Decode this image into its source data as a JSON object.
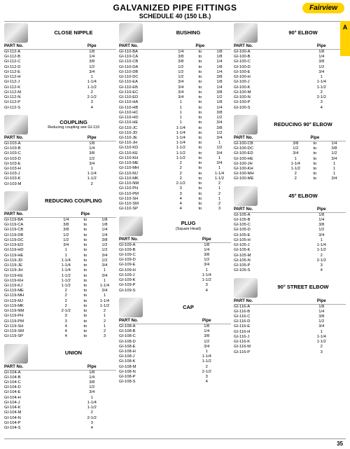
{
  "header": {
    "title1": "GALVANIZED PIPE FITTINGS",
    "title2": "SCHEDULE 40 (150 LB.)",
    "brand": "Fairview",
    "tab": "A",
    "pageNumber": "35"
  },
  "labels": {
    "part": "PART No.",
    "pipe": "Pipe",
    "to": "to"
  },
  "sections": {
    "closeNipple": {
      "title": "CLOSE NIPPLE",
      "rows": [
        [
          "GI-112-A",
          "1/8"
        ],
        [
          "GI-112-B",
          "1/4"
        ],
        [
          "GI-112-C",
          "3/8"
        ],
        [
          "GI-112-D",
          "1/2"
        ],
        [
          "GI-112-E",
          "3/4"
        ],
        [
          "GI-112-H",
          "1"
        ],
        [
          "GI-112-J",
          "1-1/4"
        ],
        [
          "GI-112-K",
          "1-1/2"
        ],
        [
          "GI-112-M",
          "2"
        ],
        [
          "GI-112-N",
          "2-1/2"
        ],
        [
          "GI-112-P",
          "3"
        ],
        [
          "GI-112-S",
          "4"
        ]
      ]
    },
    "coupling": {
      "title": "COUPLING",
      "note": "Reducing coupling see GI-119",
      "rows": [
        [
          "GI-103-A",
          "1/8"
        ],
        [
          "GI-103-B",
          "1/4"
        ],
        [
          "GI-103-C",
          "3/8"
        ],
        [
          "GI-103-D",
          "1/2"
        ],
        [
          "GI-103-E",
          "3/4"
        ],
        [
          "GI-103-H",
          "1"
        ],
        [
          "GI-103-J",
          "1-1/4"
        ],
        [
          "GI-103-K",
          "1-1/2"
        ],
        [
          "GI-103-M",
          "2"
        ]
      ]
    },
    "reducingCoupling": {
      "title": "REDUCING COUPLING",
      "rows": [
        [
          "GI-119-BA",
          "1/4",
          "1/8"
        ],
        [
          "GI-119-CA",
          "3/8",
          "1/8"
        ],
        [
          "GI-119-CB",
          "3/8",
          "1/4"
        ],
        [
          "GI-119-DB",
          "1/2",
          "1/4"
        ],
        [
          "GI-119-DC",
          "1/2",
          "3/8"
        ],
        [
          "GI-119-ED",
          "3/4",
          "1/2"
        ],
        [
          "GI-119-HD",
          "1",
          "1/2"
        ],
        [
          "GI-119-HE",
          "1",
          "3/4"
        ],
        [
          "GI-119-JD",
          "1-1/4",
          "1/2"
        ],
        [
          "GI-119-JE",
          "1-1/4",
          "3/4"
        ],
        [
          "GI-119-JH",
          "1-1/4",
          "1"
        ],
        [
          "GI-119-KE",
          "1-1/2",
          "3/4"
        ],
        [
          "GI-119-KH",
          "1-1/2",
          "1"
        ],
        [
          "GI-119-KJ",
          "1-1/2",
          "1-1/4"
        ],
        [
          "GI-119-ME",
          "2",
          "3/4"
        ],
        [
          "GI-119-MH",
          "2",
          "1"
        ],
        [
          "GI-119-MJ",
          "2",
          "1-1/4"
        ],
        [
          "GI-119-MK",
          "2",
          "1-1/2"
        ],
        [
          "GI-119-NM",
          "2-1/2",
          "2"
        ],
        [
          "GI-119-PH",
          "3",
          "1"
        ],
        [
          "GI-119-PM",
          "3",
          "2"
        ],
        [
          "GI-119-SH",
          "4",
          "1"
        ],
        [
          "GI-119-SM",
          "4",
          "2"
        ],
        [
          "GI-119-SP",
          "4",
          "3"
        ]
      ]
    },
    "union": {
      "title": "UNION",
      "rows": [
        [
          "GI-104-A",
          "1/8"
        ],
        [
          "GI-104-B",
          "1/4"
        ],
        [
          "GI-104-C",
          "3/8"
        ],
        [
          "GI-104-D",
          "1/2"
        ],
        [
          "GI-104-E",
          "3/4"
        ],
        [
          "GI-104-H",
          "1"
        ],
        [
          "GI-104-J",
          "1-1/4"
        ],
        [
          "GI-104-K",
          "1-1/2"
        ],
        [
          "GI-104-M",
          "2"
        ],
        [
          "GI-104-N",
          "2-1/2"
        ],
        [
          "GI-104-P",
          "3"
        ],
        [
          "GI-104-S",
          "4"
        ]
      ]
    },
    "bushing": {
      "title": "BUSHING",
      "rows": [
        [
          "GI-110-BA",
          "1/4",
          "1/8"
        ],
        [
          "GI-110-CA",
          "3/8",
          "1/8"
        ],
        [
          "GI-110-CB",
          "3/8",
          "1/4"
        ],
        [
          "GI-110-DA",
          "1/2",
          "1/8"
        ],
        [
          "GI-110-DB",
          "1/2",
          "1/4"
        ],
        [
          "GI-110-DC",
          "1/2",
          "3/8"
        ],
        [
          "GI-110-EA",
          "3/4",
          "1/8"
        ],
        [
          "GI-110-EB",
          "3/4",
          "1/4"
        ],
        [
          "GI-110-EC",
          "3/4",
          "3/8"
        ],
        [
          "GI-110-ED",
          "3/4",
          "1/2"
        ],
        [
          "GI-110-HA",
          "1",
          "1/8"
        ],
        [
          "GI-110-HB",
          "1",
          "1/4"
        ],
        [
          "GI-110-HC",
          "1",
          "3/8"
        ],
        [
          "GI-110-HD",
          "1",
          "1/2"
        ],
        [
          "GI-110-HE",
          "1",
          "3/4"
        ],
        [
          "GI-110-JC",
          "1-1/4",
          "3/8"
        ],
        [
          "GI-110-JD",
          "1-1/4",
          "1/2"
        ],
        [
          "GI-110-JE",
          "1-1/4",
          "3/4"
        ],
        [
          "GI-110-JH",
          "1-1/4",
          "1"
        ],
        [
          "GI-110-KD",
          "1-1/2",
          "1/2"
        ],
        [
          "GI-110-KE",
          "1-1/2",
          "3/4"
        ],
        [
          "GI-110-KH",
          "1-1/2",
          "1"
        ],
        [
          "GI-110-ME",
          "2",
          "3/4"
        ],
        [
          "GI-110-MH",
          "2",
          "1"
        ],
        [
          "GI-110-MJ",
          "2",
          "1-1/4"
        ],
        [
          "GI-110-MK",
          "2",
          "1-1/2"
        ],
        [
          "GI-110-NM",
          "2-1/2",
          "2"
        ],
        [
          "GI-110-PH",
          "3",
          "1"
        ],
        [
          "GI-110-PM",
          "3",
          "2"
        ],
        [
          "GI-110-SH",
          "4",
          "1"
        ],
        [
          "GI-110-SM",
          "4",
          "2"
        ],
        [
          "GI-110-SP",
          "4",
          "3"
        ]
      ]
    },
    "plug": {
      "title": "PLUG",
      "subtitle": "(Square Head)",
      "rows": [
        [
          "GI-109-A",
          "1/8"
        ],
        [
          "GI-109-B",
          "1/4"
        ],
        [
          "GI-109-C",
          "3/8"
        ],
        [
          "GI-109-D",
          "1/2"
        ],
        [
          "GI-109-E",
          "3/4"
        ],
        [
          "GI-109-H",
          "1"
        ],
        [
          "GI-109-J",
          "1-1/4"
        ],
        [
          "GI-109-K",
          "1-1/2"
        ],
        [
          "GI-109-P",
          "3"
        ],
        [
          "GI-109-S",
          "4"
        ]
      ]
    },
    "cap": {
      "title": "CAP",
      "rows": [
        [
          "GI-108-A",
          "1/8"
        ],
        [
          "GI-108-B",
          "1/4"
        ],
        [
          "GI-108-C",
          "3/8"
        ],
        [
          "GI-108-D",
          "1/2"
        ],
        [
          "GI-108-E",
          "3/4"
        ],
        [
          "GI-108-H",
          "1"
        ],
        [
          "GI-108-J",
          "1-1/4"
        ],
        [
          "GI-108-K",
          "1-1/2"
        ],
        [
          "GI-108-M",
          "2"
        ],
        [
          "GI-108-N",
          "2-1/2"
        ],
        [
          "GI-108-P",
          "3"
        ],
        [
          "GI-108-S",
          "4"
        ]
      ]
    },
    "elbow90": {
      "title": "90° ELBOW",
      "rows": [
        [
          "GI-100-A",
          "1/8"
        ],
        [
          "GI-100-B",
          "1/4"
        ],
        [
          "GI-100-C",
          "3/8"
        ],
        [
          "GI-100-D",
          "1/2"
        ],
        [
          "GI-100-E",
          "3/4"
        ],
        [
          "GI-100-H",
          "1"
        ],
        [
          "GI-100-J",
          "1-1/4"
        ],
        [
          "GI-100-K",
          "1-1/2"
        ],
        [
          "GI-100-M",
          "2"
        ],
        [
          "GI-100-N",
          "2-1/2"
        ],
        [
          "GI-100-P",
          "3"
        ],
        [
          "GI-100-S",
          "4"
        ]
      ]
    },
    "reducingElbow90": {
      "title": "REDUCING 90° ELBOW",
      "rows": [
        [
          "GI-100-CB",
          "3/8",
          "1/4"
        ],
        [
          "GI-100-DC",
          "1/2",
          "3/8"
        ],
        [
          "GI-100-ED",
          "3/4",
          "1/2"
        ],
        [
          "GI-100-HE",
          "1",
          "3/4"
        ],
        [
          "GI-100-JH",
          "1-1/4",
          "1"
        ],
        [
          "GI-100-KH",
          "1-1/2",
          "1"
        ],
        [
          "GI-100-MH",
          "2",
          "1"
        ],
        [
          "GI-100-ME",
          "2",
          "3/4"
        ]
      ]
    },
    "elbow45": {
      "title": "45° ELBOW",
      "rows": [
        [
          "GI-105-A",
          "1/8"
        ],
        [
          "GI-105-B",
          "1/4"
        ],
        [
          "GI-105-C",
          "3/8"
        ],
        [
          "GI-105-D",
          "1/2"
        ],
        [
          "GI-105-E",
          "3/4"
        ],
        [
          "GI-105-H",
          "1"
        ],
        [
          "GI-105-J",
          "1-1/4"
        ],
        [
          "GI-105-K",
          "1-1/2"
        ],
        [
          "GI-105-M",
          "2"
        ],
        [
          "GI-105-N",
          "2-1/2"
        ],
        [
          "GI-105-P",
          "3"
        ],
        [
          "GI-105-S",
          "4"
        ]
      ]
    },
    "streetElbow90": {
      "title": "90° STREET ELBOW",
      "rows": [
        [
          "GI-116-A",
          "1/8"
        ],
        [
          "GI-116-B",
          "1/4"
        ],
        [
          "GI-116-C",
          "3/8"
        ],
        [
          "GI-116-D",
          "1/2"
        ],
        [
          "GI-116-E",
          "3/4"
        ],
        [
          "GI-116-H",
          "1"
        ],
        [
          "GI-116-J",
          "1-1/4"
        ],
        [
          "GI-116-K",
          "1-1/2"
        ],
        [
          "GI-116-M",
          "2"
        ],
        [
          "GI-116-P",
          "3"
        ]
      ]
    }
  }
}
